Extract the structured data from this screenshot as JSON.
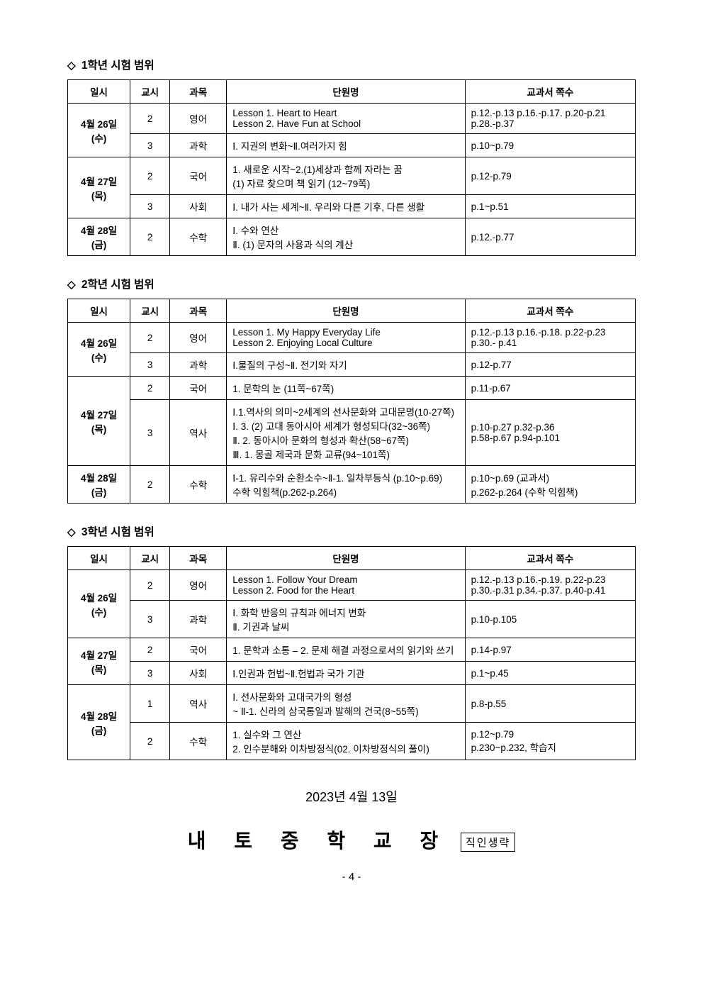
{
  "headers": {
    "date": "일시",
    "period": "교시",
    "subject": "과목",
    "unit": "단원명",
    "pages": "교과서 쪽수"
  },
  "grade1": {
    "title": "1학년 시험 범위",
    "rows": [
      {
        "date": "4월 26일\n(수)",
        "period": "2",
        "subject": "영어",
        "unit": "Lesson 1. Heart to Heart\nLesson 2. Have Fun at School",
        "pages": "p.12.-p.13 p.16.-p.17. p.20-p.21\np.28.-p.37",
        "rowspan": 2
      },
      {
        "period": "3",
        "subject": "과학",
        "unit": "Ⅰ. 지권의 변화~Ⅱ.여러가지 힘",
        "pages": "p.10~p.79"
      },
      {
        "date": "4월 27일\n(목)",
        "period": "2",
        "subject": "국어",
        "unit": "1. 새로운 시작~2.(1)세상과 함께 자라는 꿈\n(1) 자료 찾으며 책 읽기 (12~79쪽)",
        "pages": "p.12-p.79",
        "rowspan": 2
      },
      {
        "period": "3",
        "subject": "사회",
        "unit": "Ⅰ. 내가 사는 세계~Ⅱ. 우리와 다른 기후, 다른 생활",
        "pages": "p.1~p.51"
      },
      {
        "date": "4월 28일\n(금)",
        "period": "2",
        "subject": "수학",
        "unit": "Ⅰ. 수와 연산\nⅡ. (1) 문자의 사용과 식의 계산",
        "pages": "p.12.-p.77",
        "rowspan": 1
      }
    ]
  },
  "grade2": {
    "title": "2학년 시험 범위",
    "rows": [
      {
        "date": "4월 26일\n(수)",
        "period": "2",
        "subject": "영어",
        "unit": "Lesson 1. My Happy Everyday Life\nLesson 2. Enjoying Local Culture",
        "pages": "p.12.-p.13 p.16.-p.18. p.22-p.23\np.30.- p.41",
        "rowspan": 2
      },
      {
        "period": "3",
        "subject": "과학",
        "unit": "Ⅰ.물질의 구성~Ⅱ. 전기와 자기",
        "pages": "p.12-p.77"
      },
      {
        "date": "4월 27일\n(목)",
        "period": "2",
        "subject": "국어",
        "unit": "1. 문학의 눈  (11쪽~67쪽)",
        "pages": "p.11-p.67",
        "rowspan": 2
      },
      {
        "period": "3",
        "subject": "역사",
        "unit": "Ⅰ.1.역사의 의미~2세계의 선사문화와 고대문명(10-27쪽)\nⅠ. 3. (2) 고대 동아시아 세계가 형성되다(32~36쪽)\nⅡ. 2. 동아시아 문화의 형성과 확산(58~67쪽)\nⅢ. 1. 몽골 제국과 문화 교류(94~101쪽)",
        "pages": "p.10-p.27  p.32-p.36\np.58-p.67  p.94-p.101"
      },
      {
        "date": "4월 28일\n(금)",
        "period": "2",
        "subject": "수학",
        "unit": "Ⅰ-1. 유리수와 순환소수~Ⅱ-1. 일차부등식 (p.10~p.69)\n수학 익힘책(p.262-p.264)",
        "pages": "p.10~p.69 (교과서)\np.262-p.264 (수학 익힘책)",
        "rowspan": 1
      }
    ]
  },
  "grade3": {
    "title": "3학년 시험 범위",
    "rows": [
      {
        "date": "4월 26일\n(수)",
        "period": "2",
        "subject": "영어",
        "unit": "Lesson 1. Follow Your Dream\nLesson 2. Food for the Heart",
        "pages": "p.12.-p.13 p.16.-p.19. p.22-p.23\np.30.-p.31 p.34.-p.37. p.40-p.41",
        "rowspan": 2
      },
      {
        "period": "3",
        "subject": "과학",
        "unit": "Ⅰ. 화학 반응의 규칙과 에너지 변화\nⅡ. 기권과 날씨",
        "pages": "p.10-p.105"
      },
      {
        "date": "4월 27일\n(목)",
        "period": "2",
        "subject": "국어",
        "unit": "1. 문학과 소통 – 2. 문제 해결 과정으로서의 읽기와 쓰기",
        "pages": "p.14-p.97",
        "rowspan": 2
      },
      {
        "period": "3",
        "subject": "사회",
        "unit": "Ⅰ.인권과 헌법~Ⅱ.헌법과 국가 기관",
        "pages": "p.1~p.45"
      },
      {
        "date": "4월 28일\n(금)",
        "period": "1",
        "subject": "역사",
        "unit": "Ⅰ. 선사문화와 고대국가의 형성\n~ Ⅱ-1. 신라의 삼국통일과 발해의 건국(8~55쪽)",
        "pages": "p.8-p.55",
        "rowspan": 2
      },
      {
        "period": "2",
        "subject": "수학",
        "unit": "1. 실수와 그 연산\n2. 인수분해와 이차방정식(02. 이차방정식의 풀이)",
        "pages": "p.12~p.79\np.230~p.232, 학습지"
      }
    ]
  },
  "footer": {
    "date": "2023년 4월 13일",
    "principal": "내 토 중 학 교 장",
    "stamp": "직인생략",
    "page": "- 4 -"
  }
}
